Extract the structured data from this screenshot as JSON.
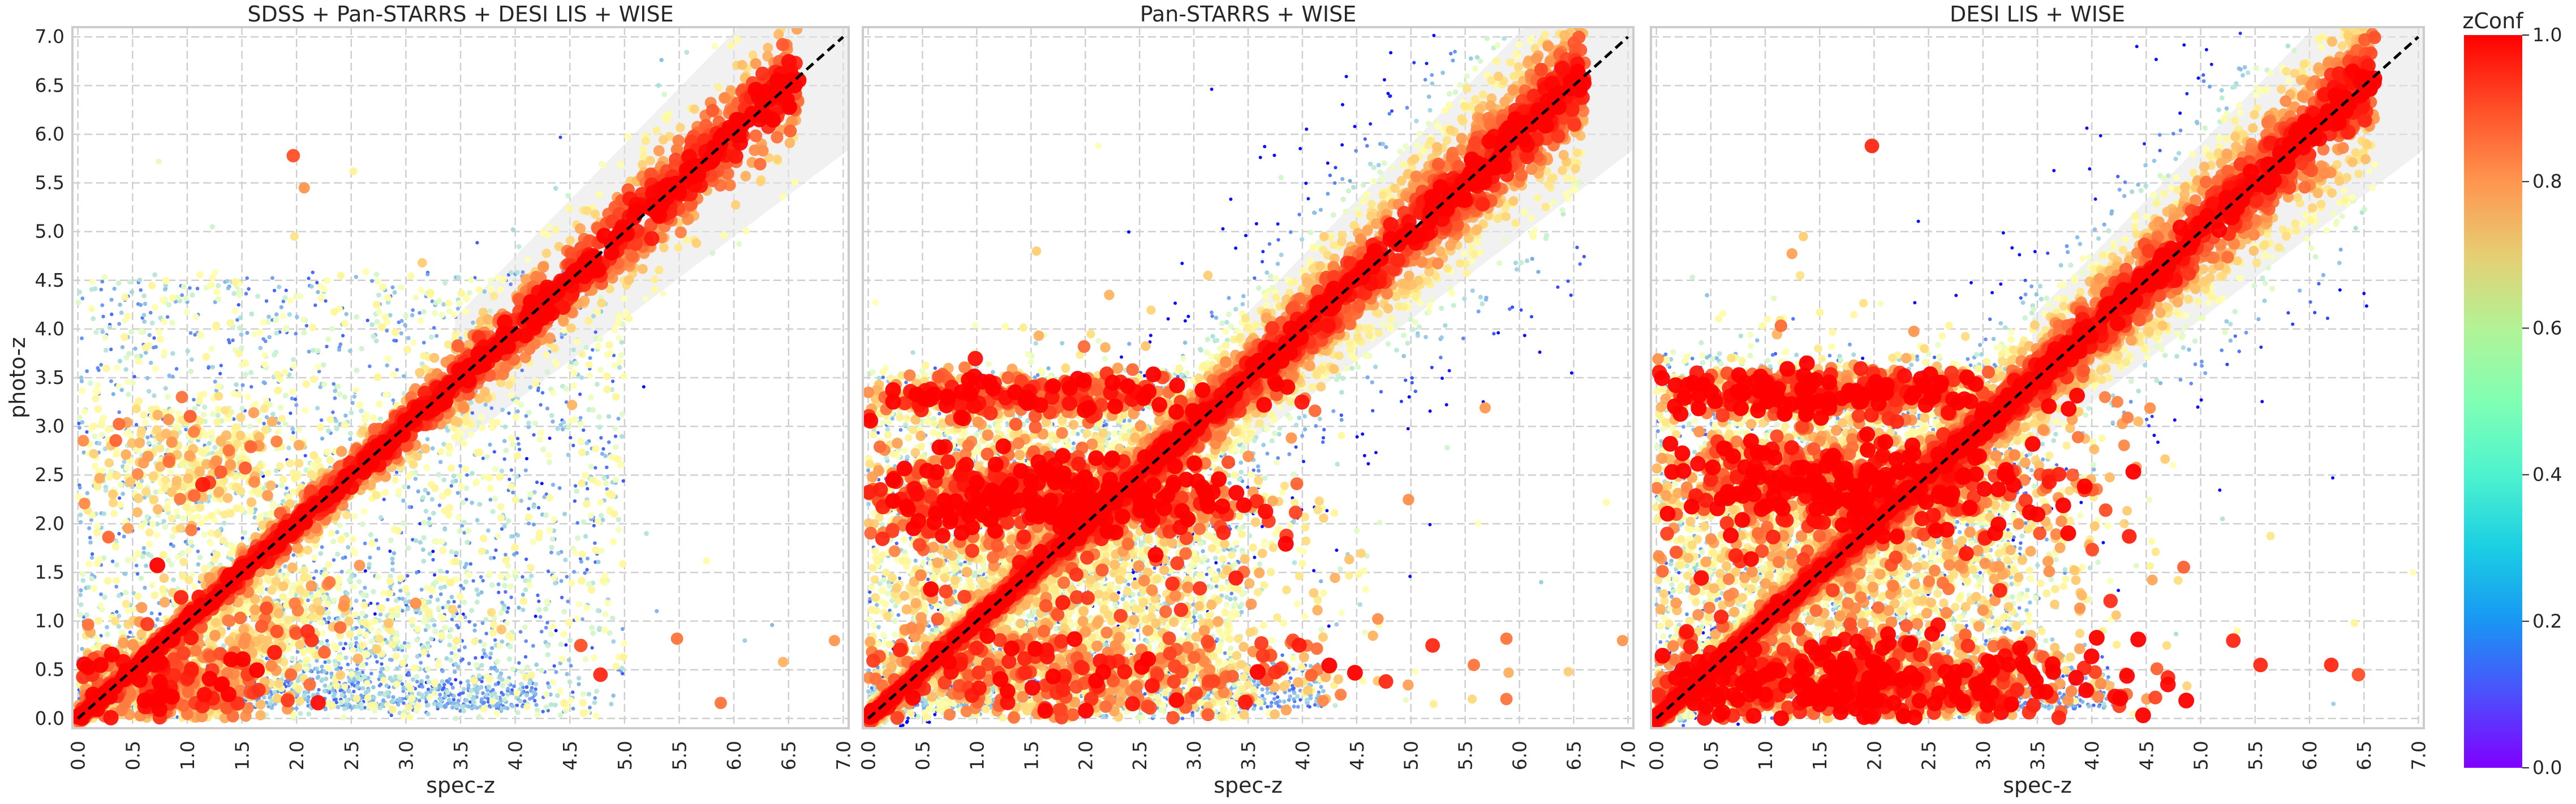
{
  "chart_data": [
    {
      "type": "scatter",
      "title": "SDSS + Pan-STARRS + DESI LIS + WISE",
      "xlabel": "spec-z",
      "ylabel": "photo-z",
      "xlim": [
        -0.05,
        7.05
      ],
      "ylim": [
        -0.1,
        7.1
      ],
      "xticks": [
        "0.0",
        "0.5",
        "1.0",
        "1.5",
        "2.0",
        "2.5",
        "3.0",
        "3.5",
        "4.0",
        "4.5",
        "5.0",
        "5.5",
        "6.0",
        "6.5",
        "7.0"
      ],
      "yticks": [
        "0.0",
        "0.5",
        "1.0",
        "1.5",
        "2.0",
        "2.5",
        "3.0",
        "3.5",
        "4.0",
        "4.5",
        "5.0",
        "5.5",
        "6.0",
        "6.5",
        "7.0"
      ],
      "grid": true,
      "color_by": "zConf",
      "reference_line": {
        "from": [
          0,
          0
        ],
        "to": [
          7,
          7
        ],
        "style": "dashed",
        "color": "#000000"
      },
      "outlier_band": "shaded |Δz| ≤ 0.15(1+z)",
      "core_spread": 0.05,
      "box_xmax": 5.0,
      "box_ymax": 4.6,
      "n_density": 10,
      "extra_blobs": [
        {
          "x": 0.7,
          "y": 0.35,
          "sx": 0.55,
          "sy": 0.25,
          "n": 900,
          "c": 0.72
        },
        {
          "x": 1.1,
          "y": 2.6,
          "sx": 0.5,
          "sy": 0.35,
          "n": 500,
          "c": 0.55
        },
        {
          "x": 2.8,
          "y": 1.0,
          "sx": 0.7,
          "sy": 0.3,
          "n": 350,
          "c": 0.3
        },
        {
          "x": 1.6,
          "y": 1.0,
          "sx": 0.5,
          "sy": 0.3,
          "n": 500,
          "c": 0.55
        }
      ],
      "outliers": [
        [
          5.48,
          0.82,
          0.85
        ],
        [
          5.88,
          0.16,
          0.85
        ],
        [
          6.45,
          0.58,
          0.75
        ],
        [
          6.92,
          0.8,
          0.8
        ],
        [
          4.78,
          0.45,
          0.95
        ],
        [
          4.6,
          0.75,
          0.9
        ],
        [
          1.97,
          5.78,
          0.9
        ],
        [
          2.07,
          5.45,
          0.8
        ],
        [
          2.52,
          5.62,
          0.6
        ],
        [
          3.15,
          4.68,
          0.7
        ],
        [
          0.74,
          5.72,
          0.45
        ],
        [
          1.23,
          5.05,
          0.4
        ],
        [
          1.22,
          4.45,
          0.55
        ],
        [
          1.98,
          4.95,
          0.65
        ],
        [
          2.78,
          4.02,
          0.6
        ],
        [
          5.75,
          1.62,
          0.55
        ],
        [
          5.2,
          1.9,
          0.35
        ],
        [
          6.1,
          0.8,
          0.3
        ],
        [
          6.35,
          0.96,
          0.25
        ],
        [
          4.52,
          3.22,
          0.75
        ]
      ]
    },
    {
      "type": "scatter",
      "title": "Pan-STARRS + WISE",
      "xlabel": "spec-z",
      "ylabel": "",
      "xlim": [
        -0.05,
        7.05
      ],
      "ylim": [
        -0.1,
        7.1
      ],
      "xticks": [
        "0.0",
        "0.5",
        "1.0",
        "1.5",
        "2.0",
        "2.5",
        "3.0",
        "3.5",
        "4.0",
        "4.5",
        "5.0",
        "5.5",
        "6.0",
        "6.5",
        "7.0"
      ],
      "grid": true,
      "color_by": "zConf",
      "reference_line": {
        "from": [
          0,
          0
        ],
        "to": [
          7,
          7
        ],
        "style": "dashed",
        "color": "#000000"
      },
      "outlier_band": "shaded |Δz| ≤ 0.15(1+z)",
      "core_spread": 0.09,
      "box_xmax": 3.45,
      "box_ymax": 3.6,
      "n_density": 20,
      "extra_blobs": [
        {
          "x": 1.7,
          "y": 2.25,
          "sx": 0.9,
          "sy": 0.22,
          "n": 900,
          "c": 0.85
        },
        {
          "x": 1.7,
          "y": 1.7,
          "sx": 1.1,
          "sy": 0.9,
          "n": 2400,
          "c": 0.55
        },
        {
          "x": 1.6,
          "y": 0.45,
          "sx": 1.2,
          "sy": 0.25,
          "n": 900,
          "c": 0.72
        },
        {
          "x": 1.4,
          "y": 3.3,
          "sx": 1.0,
          "sy": 0.12,
          "n": 500,
          "c": 0.8
        }
      ],
      "outliers": [
        [
          4.65,
          0.85,
          0.75
        ],
        [
          4.77,
          0.38,
          0.95
        ],
        [
          5.2,
          0.75,
          0.95
        ],
        [
          5.58,
          0.55,
          0.85
        ],
        [
          5.88,
          0.82,
          0.85
        ],
        [
          5.88,
          0.2,
          0.85
        ],
        [
          6.45,
          0.48,
          0.7
        ],
        [
          6.95,
          0.8,
          0.8
        ],
        [
          3.13,
          4.55,
          0.7
        ],
        [
          2.12,
          5.88,
          0.5
        ],
        [
          1.55,
          4.8,
          0.7
        ],
        [
          2.22,
          4.35,
          0.75
        ],
        [
          6.8,
          2.22,
          0.55
        ],
        [
          6.2,
          1.4,
          0.3
        ],
        [
          4.2,
          4.95,
          0.7
        ]
      ]
    },
    {
      "type": "scatter",
      "title": "DESI LIS + WISE",
      "xlabel": "spec-z",
      "ylabel": "",
      "xlim": [
        -0.05,
        7.05
      ],
      "ylim": [
        -0.1,
        7.1
      ],
      "xticks": [
        "0.0",
        "0.5",
        "1.0",
        "1.5",
        "2.0",
        "2.5",
        "3.0",
        "3.5",
        "4.0",
        "4.5",
        "5.0",
        "5.5",
        "6.0",
        "6.5",
        "7.0"
      ],
      "grid": true,
      "color_by": "zConf",
      "reference_line": {
        "from": [
          0,
          0
        ],
        "to": [
          7,
          7
        ],
        "style": "dashed",
        "color": "#000000"
      },
      "outlier_band": "shaded |Δz| ≤ 0.15(1+z)",
      "core_spread": 0.08,
      "box_xmax": 3.45,
      "box_ymax": 3.75,
      "n_density": 20,
      "extra_blobs": [
        {
          "x": 1.7,
          "y": 2.4,
          "sx": 0.9,
          "sy": 0.22,
          "n": 800,
          "c": 0.85
        },
        {
          "x": 1.7,
          "y": 1.8,
          "sx": 1.1,
          "sy": 0.9,
          "n": 2400,
          "c": 0.6
        },
        {
          "x": 1.6,
          "y": 0.35,
          "sx": 1.2,
          "sy": 0.22,
          "n": 1100,
          "c": 0.85
        },
        {
          "x": 1.5,
          "y": 3.35,
          "sx": 1.0,
          "sy": 0.12,
          "n": 600,
          "c": 0.85
        }
      ],
      "outliers": [
        [
          1.98,
          5.88,
          0.95
        ],
        [
          4.7,
          0.42,
          0.95
        ],
        [
          5.3,
          0.8,
          0.95
        ],
        [
          5.55,
          0.55,
          0.95
        ],
        [
          6.2,
          0.55,
          0.95
        ],
        [
          6.45,
          0.45,
          0.9
        ],
        [
          1.35,
          4.95,
          0.7
        ],
        [
          1.32,
          4.55,
          0.65
        ],
        [
          1.02,
          4.1,
          0.55
        ],
        [
          3.88,
          3.15,
          0.7
        ],
        [
          4.55,
          1.82,
          0.55
        ],
        [
          6.95,
          1.5,
          0.5
        ],
        [
          5.2,
          2.05,
          0.35
        ],
        [
          4.18,
          4.65,
          0.65
        ],
        [
          6.22,
          0.15,
          0.3
        ]
      ]
    }
  ],
  "colorbar": {
    "label": "zConf",
    "min": 0.0,
    "max": 1.0,
    "colormap": "rainbow",
    "ticks": [
      "0.0",
      "0.2",
      "0.4",
      "0.6",
      "0.8",
      "1.0"
    ]
  },
  "style": {
    "background": "#ffffff",
    "grid_color": "#cfcfcf",
    "frame_color": "#cccccc",
    "band_fill": "#e5e5e5",
    "text_color": "#262626"
  }
}
